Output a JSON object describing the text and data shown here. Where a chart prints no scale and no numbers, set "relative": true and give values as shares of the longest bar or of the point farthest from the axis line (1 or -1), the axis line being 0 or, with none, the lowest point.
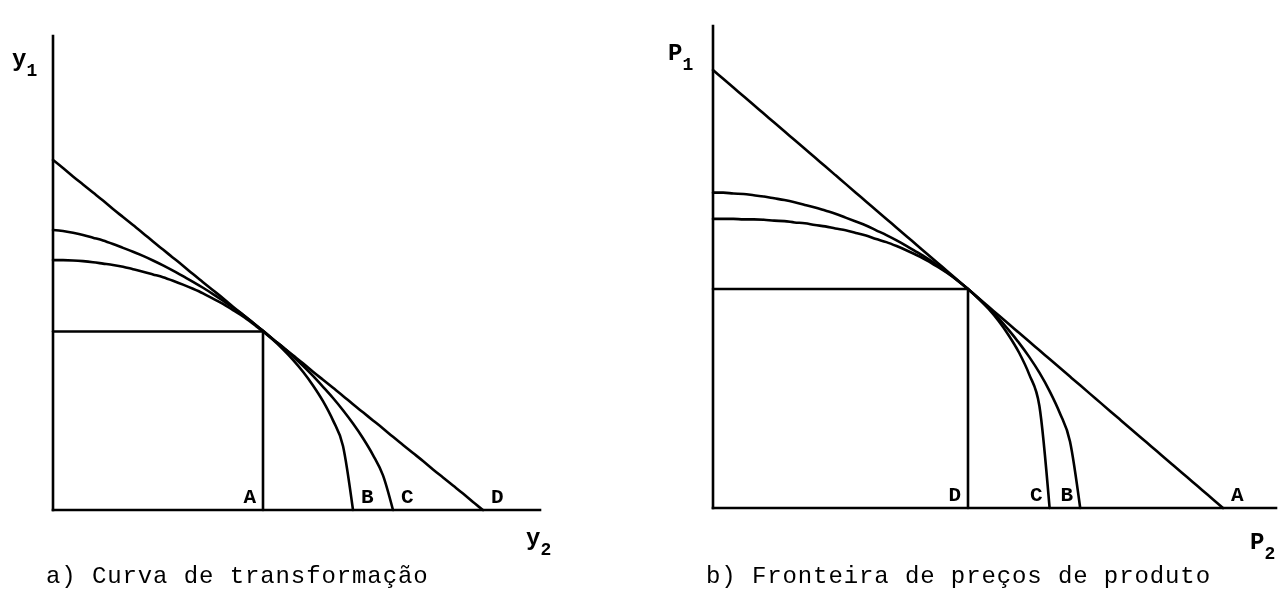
{
  "chart_data": [
    {
      "type": "line",
      "title": "a) Curva de transformação",
      "xlabel": "y$_{2}$",
      "ylabel": "y$_{1}$",
      "relative": true,
      "categories": [
        null,
        null,
        null,
        null,
        null,
        null,
        null,
        null,
        null,
        null,
        null,
        null,
        null,
        null,
        null,
        null,
        null,
        null,
        null,
        null,
        null,
        null,
        null,
        null,
        null,
        null,
        null,
        null,
        null,
        null,
        null,
        null,
        null,
        null,
        null,
        null,
        null,
        null,
        null,
        null,
        null,
        null,
        null,
        null,
        null,
        null
      ],
      "series": [
        {
          "name": "A",
          "type": "step",
          "color": "#000000",
          "values": [
            0.51,
            0.51,
            0.51,
            0.51,
            0.51,
            0.51,
            0.51,
            0.51,
            0.51,
            0.51,
            0.51,
            0.51,
            0.51,
            0.51,
            0.51,
            0.51,
            0.51,
            0.51,
            0.51,
            0.51,
            0.51,
            0,
            null,
            null,
            null,
            null,
            null,
            null,
            null,
            null,
            null,
            null,
            null,
            null,
            null,
            null,
            null,
            null,
            null,
            null,
            null,
            null,
            null,
            null,
            null,
            null
          ]
        },
        {
          "name": "B",
          "color": "#000000",
          "values": [
            0.714,
            0.714,
            0.713,
            0.711,
            0.708,
            0.704,
            0.7,
            0.695,
            0.688,
            0.681,
            0.673,
            0.665,
            0.655,
            0.644,
            0.632,
            0.619,
            0.604,
            0.589,
            0.571,
            0.553,
            0.532,
            0.51,
            0.486,
            0.459,
            0.429,
            0.395,
            0.356,
            0.311,
            0.256,
            0.183,
            0,
            null,
            null,
            null,
            null,
            null,
            null,
            null,
            null,
            null,
            null,
            null,
            null,
            null,
            null,
            null
          ]
        },
        {
          "name": "C",
          "color": "#000000",
          "values": [
            0.8,
            0.797,
            0.792,
            0.786,
            0.778,
            0.77,
            0.76,
            0.749,
            0.738,
            0.726,
            0.713,
            0.699,
            0.684,
            0.668,
            0.652,
            0.635,
            0.617,
            0.598,
            0.578,
            0.558,
            0.535,
            0.512,
            0.488,
            0.465,
            0.439,
            0.412,
            0.383,
            0.352,
            0.32,
            0.285,
            0.247,
            0.205,
            0.157,
            0.099,
            0,
            null,
            null,
            null,
            null,
            null,
            null,
            null,
            null,
            null,
            null,
            null
          ]
        },
        {
          "name": "D",
          "color": "#000000",
          "values": [
            1,
            0.977,
            0.953,
            0.93,
            0.907,
            0.884,
            0.86,
            0.837,
            0.814,
            0.791,
            0.767,
            0.744,
            0.721,
            0.698,
            0.674,
            0.651,
            0.628,
            0.605,
            0.581,
            0.558,
            0.535,
            0.512,
            0.488,
            0.465,
            0.442,
            0.419,
            0.395,
            0.372,
            0.349,
            0.326,
            0.302,
            0.279,
            0.256,
            0.233,
            0.209,
            0.186,
            0.163,
            0.14,
            0.116,
            0.093,
            0.07,
            0.047,
            0.023,
            0,
            null,
            null
          ]
        }
      ]
    },
    {
      "type": "line",
      "title": "b) Fronteira de preços de produto",
      "xlabel": "P$_{2}$",
      "ylabel": "P$_{1}$",
      "relative": true,
      "categories": [
        null,
        null,
        null,
        null,
        null,
        null,
        null,
        null,
        null,
        null,
        null,
        null,
        null,
        null,
        null,
        null,
        null,
        null,
        null,
        null,
        null,
        null,
        null,
        null,
        null,
        null,
        null,
        null,
        null,
        null,
        null,
        null,
        null,
        null,
        null,
        null,
        null,
        null,
        null,
        null,
        null,
        null,
        null,
        null,
        null,
        null,
        null,
        null,
        null,
        null,
        null,
        null,
        null,
        null,
        null
      ],
      "series": [
        {
          "name": "A",
          "color": "#000000",
          "values": [
            1,
            0.98,
            0.96,
            0.94,
            0.92,
            0.9,
            0.88,
            0.86,
            0.84,
            0.82,
            0.8,
            0.78,
            0.76,
            0.74,
            0.72,
            0.7,
            0.68,
            0.66,
            0.64,
            0.62,
            0.6,
            0.58,
            0.56,
            0.54,
            0.52,
            0.5,
            0.48,
            0.46,
            0.44,
            0.42,
            0.4,
            0.38,
            0.36,
            0.34,
            0.32,
            0.3,
            0.28,
            0.26,
            0.24,
            0.22,
            0.2,
            0.18,
            0.16,
            0.14,
            0.12,
            0.1,
            0.08,
            0.06,
            0.04,
            0.02,
            0,
            null,
            null,
            null,
            null
          ]
        },
        {
          "name": "B",
          "color": "#000000",
          "values": [
            0.72,
            0.72,
            0.718,
            0.717,
            0.714,
            0.711,
            0.707,
            0.703,
            0.698,
            0.692,
            0.686,
            0.679,
            0.672,
            0.663,
            0.654,
            0.645,
            0.634,
            0.623,
            0.611,
            0.598,
            0.584,
            0.57,
            0.554,
            0.537,
            0.519,
            0.5,
            0.479,
            0.457,
            0.433,
            0.406,
            0.377,
            0.345,
            0.309,
            0.267,
            0.217,
            0.152,
            0,
            null,
            null,
            null,
            null,
            null,
            null,
            null,
            null,
            null,
            null,
            null,
            null,
            null,
            null,
            null,
            null,
            null,
            null
          ]
        },
        {
          "name": "C",
          "color": "#000000",
          "values": [
            0.66,
            0.66,
            0.66,
            0.659,
            0.659,
            0.658,
            0.656,
            0.655,
            0.652,
            0.65,
            0.646,
            0.643,
            0.638,
            0.634,
            0.628,
            0.622,
            0.614,
            0.607,
            0.598,
            0.588,
            0.577,
            0.565,
            0.551,
            0.536,
            0.519,
            0.5,
            0.479,
            0.455,
            0.427,
            0.394,
            0.355,
            0.305,
            0.233,
            0,
            null,
            null,
            null,
            null,
            null,
            null,
            null,
            null,
            null,
            null,
            null,
            null,
            null,
            null,
            null,
            null,
            null,
            null,
            null,
            null,
            null
          ]
        },
        {
          "name": "D",
          "type": "step",
          "color": "#000000",
          "values": [
            0.5,
            0.5,
            0.5,
            0.5,
            0.5,
            0.5,
            0.5,
            0.5,
            0.5,
            0.5,
            0.5,
            0.5,
            0.5,
            0.5,
            0.5,
            0.5,
            0.5,
            0.5,
            0.5,
            0.5,
            0.5,
            0.5,
            0.5,
            0.5,
            0.5,
            0,
            null,
            null,
            null,
            null,
            null,
            null,
            null,
            null,
            null,
            null,
            null,
            null,
            null,
            null,
            null,
            null,
            null,
            null,
            null,
            null,
            null,
            null,
            null,
            null,
            null,
            null,
            null,
            null,
            null
          ]
        }
      ]
    }
  ]
}
